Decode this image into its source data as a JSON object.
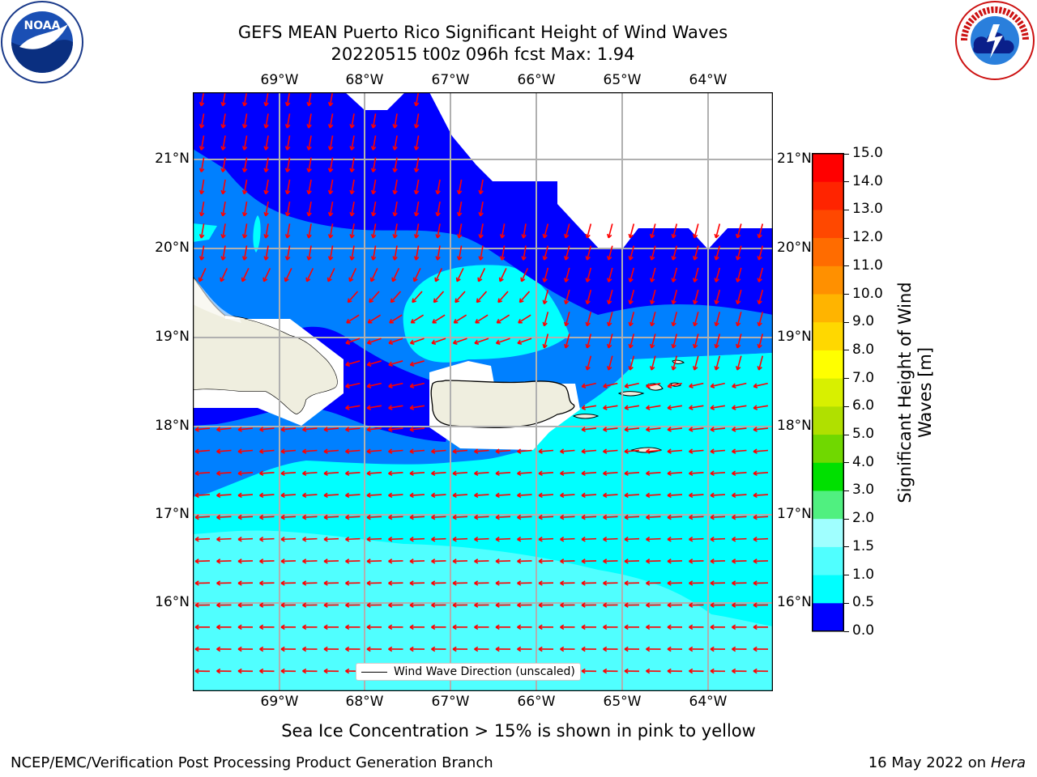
{
  "title_line1": "GEFS MEAN Puerto Rico Significant Height of Wind Waves",
  "title_line2": "20220515 t00z 096h fcst   Max: 1.94",
  "x_ticks": [
    "69°W",
    "68°W",
    "67°W",
    "66°W",
    "65°W",
    "64°W"
  ],
  "y_ticks": [
    "21°N",
    "20°N",
    "19°N",
    "18°N",
    "17°N",
    "16°N"
  ],
  "colorbar": {
    "label_line1": "Significant Height of Wind",
    "label_line2": "Waves [m]",
    "ticks": [
      "15.0",
      "14.0",
      "13.0",
      "12.0",
      "11.0",
      "10.0",
      "9.0",
      "8.0",
      "7.0",
      "6.0",
      "5.0",
      "4.0",
      "3.0",
      "2.0",
      "1.5",
      "1.0",
      "0.5",
      "0.0"
    ],
    "colors": [
      "#ff0000",
      "#ff2400",
      "#ff4800",
      "#ff6c00",
      "#ff9000",
      "#ffb400",
      "#ffd800",
      "#ffff00",
      "#d8f000",
      "#b0e000",
      "#70d800",
      "#00e000",
      "#50f080",
      "#a0ffff",
      "#50ffff",
      "#00ffff",
      "#0080ff",
      "#0000ff"
    ]
  },
  "map_colors": {
    "deep_blue": "#0000ff",
    "mid_blue": "#0080ff",
    "cyan": "#00ffff",
    "light_cyan": "#50ffff",
    "land": "#efeedf",
    "arrow": "#ff0000",
    "grid": "#b0b0b0"
  },
  "legend_label": "Wind Wave Direction (unscaled)",
  "caption": "Sea Ice Concentration > 15% is shown in pink to yellow",
  "footer_left": "NCEP/EMC/Verification Post Processing Product Generation Branch",
  "footer_right_date": "16 May 2022 on",
  "footer_right_host": "Hera",
  "logo_left_text": "NOAA",
  "logo_right_text": "NATIONAL WEATHER SERVICE"
}
